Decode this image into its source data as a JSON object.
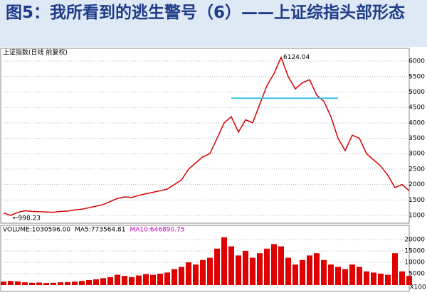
{
  "title": "图5：我所看到的逃生警号（6）——上证综指头部形态",
  "chart_data": [
    {
      "type": "line",
      "label": "上证指数(日线 前复权)",
      "color": "#d40000",
      "categories": [
        null,
        null,
        null,
        null,
        null,
        null,
        null,
        null,
        null,
        null,
        null,
        null,
        null,
        null,
        null,
        null,
        null,
        null,
        null,
        null,
        null,
        null,
        null,
        null,
        null,
        null,
        null,
        null,
        null,
        null,
        null,
        null,
        null,
        null,
        null,
        null,
        null,
        null,
        null,
        null,
        null,
        null,
        null,
        null,
        null,
        null,
        null,
        null,
        null,
        null,
        null,
        null,
        null,
        null,
        null,
        null,
        null,
        null
      ],
      "values": [
        1080,
        998.23,
        1100,
        1150,
        1130,
        1120,
        1110,
        1100,
        1130,
        1140,
        1180,
        1200,
        1250,
        1300,
        1350,
        1450,
        1550,
        1600,
        1580,
        1650,
        1700,
        1750,
        1800,
        1850,
        2000,
        2150,
        2500,
        2700,
        2900,
        3000,
        3500,
        4000,
        4200,
        3700,
        4100,
        4000,
        4600,
        5200,
        5600,
        6124.04,
        5500,
        5100,
        5300,
        5400,
        4900,
        4700,
        4200,
        3500,
        3100,
        3600,
        3500,
        3000,
        2800,
        2600,
        2300,
        1900,
        2000,
        1800
      ],
      "annotations": [
        {
          "text": "6124.04",
          "index": 39
        },
        {
          "text": "←998.23",
          "index": 1
        }
      ],
      "reference_line": {
        "value": 4800,
        "from": 32,
        "to": 47,
        "color": "#3fc4e0"
      },
      "ylim": [
        770,
        6370
      ],
      "yticks": [
        1000,
        1500,
        2000,
        2500,
        3000,
        3500,
        4000,
        4500,
        5000,
        5500,
        6000
      ],
      "grid": true
    },
    {
      "type": "bar",
      "color": "#e00000",
      "header": [
        {
          "text": "VOLUME:1030596.00",
          "color": "#000000"
        },
        {
          "text": "MA5:773564.81",
          "color": "#000000"
        },
        {
          "text": "MA10:646890.75",
          "color": "#c000c0"
        }
      ],
      "unit": "X100",
      "categories": [
        null,
        null,
        null,
        null,
        null,
        null,
        null,
        null,
        null,
        null,
        null,
        null,
        null,
        null,
        null,
        null,
        null,
        null,
        null,
        null,
        null,
        null,
        null,
        null,
        null,
        null,
        null,
        null,
        null,
        null,
        null,
        null,
        null,
        null,
        null,
        null,
        null,
        null,
        null,
        null,
        null,
        null,
        null,
        null,
        null,
        null,
        null,
        null,
        null,
        null,
        null,
        null,
        null,
        null,
        null,
        null,
        null,
        null
      ],
      "values": [
        1500,
        1800,
        1600,
        1200,
        1000,
        1100,
        900,
        1000,
        1200,
        1300,
        1500,
        1800,
        2200,
        2500,
        3000,
        3500,
        4500,
        4000,
        3500,
        4200,
        4800,
        4500,
        5000,
        5500,
        7000,
        8000,
        10000,
        9000,
        11000,
        12000,
        16000,
        21000,
        17000,
        13000,
        15000,
        12000,
        14000,
        16000,
        18000,
        17000,
        12000,
        9000,
        11000,
        13000,
        14000,
        11000,
        9000,
        8000,
        7000,
        9000,
        8000,
        6000,
        5500,
        5000,
        4500,
        14000,
        6000,
        4000
      ],
      "ylim": [
        0,
        22800
      ],
      "yticks": [
        5000,
        10000,
        15000,
        20000
      ],
      "grid": true
    }
  ]
}
